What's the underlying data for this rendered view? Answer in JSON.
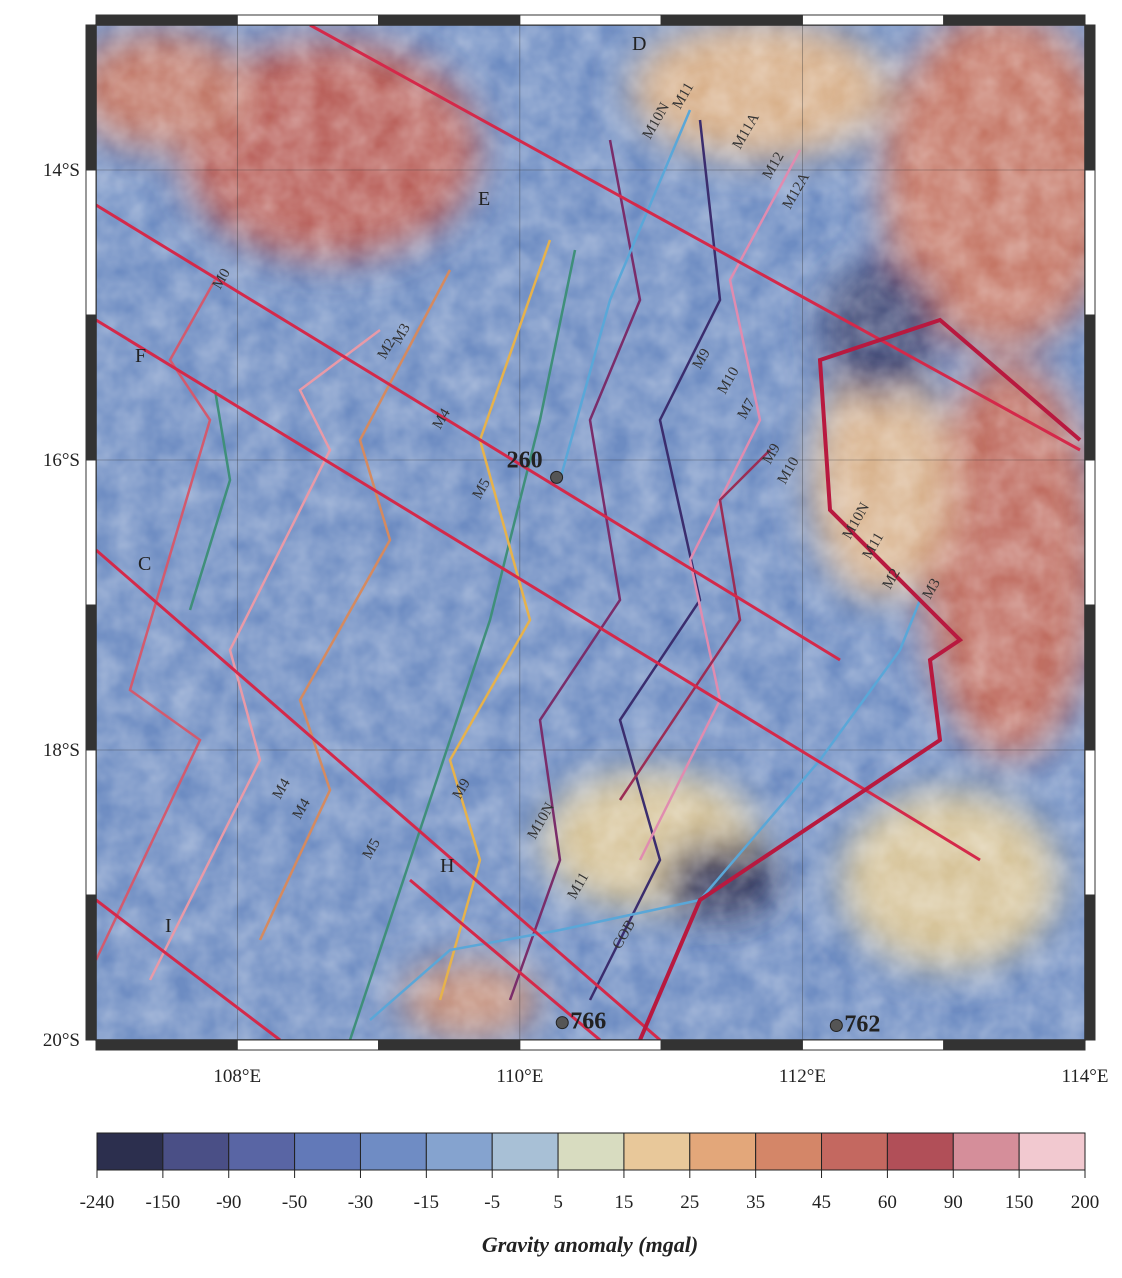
{
  "map": {
    "xlim": [
      107,
      114
    ],
    "ylim": [
      -20,
      -13
    ],
    "xticks": [
      {
        "value": 108,
        "label": "108°E"
      },
      {
        "value": 110,
        "label": "110°E"
      },
      {
        "value": 112,
        "label": "112°E"
      },
      {
        "value": 114,
        "label": "114°E"
      }
    ],
    "yticks": [
      {
        "value": -14,
        "label": "14°S"
      },
      {
        "value": -16,
        "label": "16°S"
      },
      {
        "value": -18,
        "label": "18°S"
      },
      {
        "value": -20,
        "label": "20°S"
      }
    ],
    "grid": true,
    "sites": [
      {
        "label": "260",
        "lon": 110.26,
        "lat": -16.12
      },
      {
        "label": "766",
        "lon": 110.3,
        "lat": -19.88
      },
      {
        "label": "762",
        "lon": 112.24,
        "lat": -19.9
      }
    ],
    "profiles": [
      "D",
      "E",
      "F",
      "C",
      "H",
      "I"
    ],
    "anomaly_labels": [
      "M10N",
      "M11",
      "M11A",
      "M12",
      "M12A",
      "M0",
      "M2",
      "M3",
      "M4",
      "M5",
      "M9",
      "M10",
      "M7",
      "M9",
      "M10",
      "M10N",
      "M11",
      "M2",
      "M3",
      "M4",
      "M4",
      "M5",
      "M9",
      "M10N",
      "M11",
      "COB"
    ]
  },
  "colorbar": {
    "ticks": [
      -240,
      -150,
      -90,
      -50,
      -30,
      -15,
      -5,
      5,
      15,
      25,
      35,
      45,
      60,
      90,
      150,
      200
    ],
    "colors": [
      "#2c2f4e",
      "#4a4f86",
      "#5965a4",
      "#6279b8",
      "#6f8cc4",
      "#85a3cf",
      "#a8c0d6",
      "#d8dcc0",
      "#e8c89a",
      "#e3a77a",
      "#d48668",
      "#c46860",
      "#b14f58",
      "#d58e9a",
      "#f2c9d0"
    ],
    "label": "Gravity anomaly (mgal)"
  }
}
